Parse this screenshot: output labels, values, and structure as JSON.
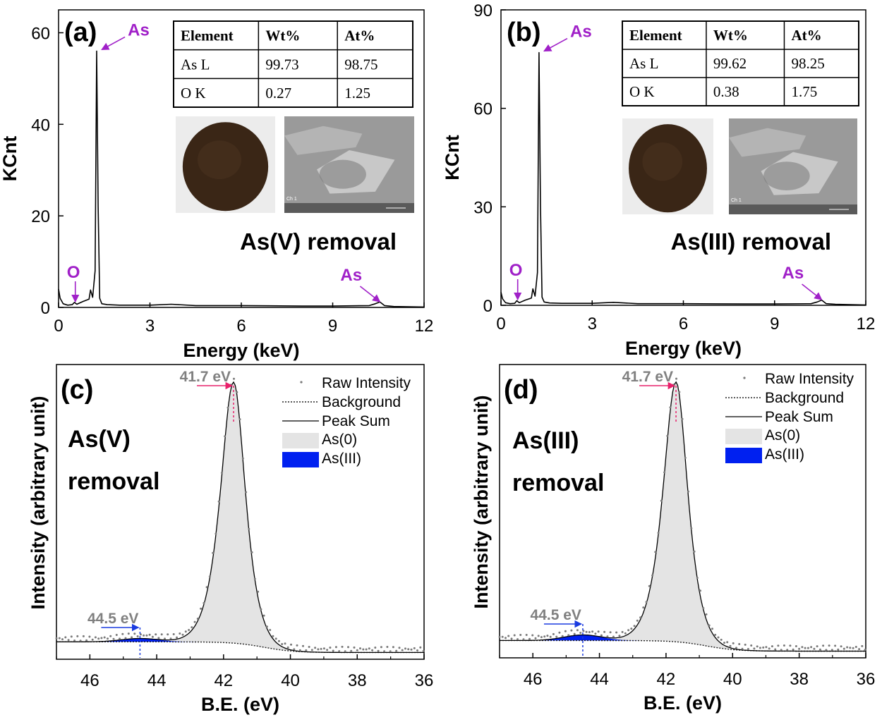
{
  "colors": {
    "annotation": "#a020c8",
    "axis": "#000000",
    "raw_points": "#7a7a7a",
    "fill_as0": "#e4e4e4",
    "fill_as3": "#0020f0",
    "marker_red": "#e8206a",
    "marker_blue": "#1a3be0",
    "label_gray": "#808080"
  },
  "chart_data": [
    {
      "panel": "(a)",
      "type": "line",
      "xlabel": "Energy (keV)",
      "ylabel": "KCnt",
      "xlim": [
        0,
        12
      ],
      "ylim": [
        0,
        65
      ],
      "xticks": [
        0,
        3,
        6,
        9,
        12
      ],
      "yticks": [
        0,
        20,
        40,
        60
      ],
      "x": [
        0,
        0.05,
        0.15,
        0.3,
        0.45,
        0.52,
        0.6,
        0.8,
        1.0,
        1.05,
        1.12,
        1.2,
        1.25,
        1.3,
        1.35,
        1.42,
        1.6,
        2.0,
        3.0,
        3.7,
        4.5,
        6.0,
        8.0,
        9.0,
        10.2,
        10.4,
        10.55,
        10.7,
        11.0,
        12.0
      ],
      "y": [
        4.0,
        2.0,
        0.8,
        0.5,
        0.6,
        1.1,
        0.7,
        1.3,
        1.8,
        3.8,
        2.2,
        8.0,
        56.0,
        22.0,
        2.0,
        0.8,
        0.6,
        0.5,
        0.5,
        0.7,
        0.4,
        0.4,
        0.3,
        0.3,
        0.4,
        0.8,
        1.2,
        0.4,
        0.2,
        0.1
      ],
      "annotations": [
        {
          "text": "As",
          "x": 1.3,
          "y": 56
        },
        {
          "text": "O",
          "x": 0.55,
          "y": 1.1
        },
        {
          "text": "As",
          "x": 10.55,
          "y": 1.2
        }
      ],
      "removal_label": "As(V) removal",
      "table": {
        "headers": [
          "Element",
          "Wt%",
          "At%"
        ],
        "rows": [
          [
            "As L",
            "99.73",
            "98.75"
          ],
          [
            "O K",
            "0.27",
            "1.25"
          ]
        ]
      },
      "sem_label": "Ch 1"
    },
    {
      "panel": "(b)",
      "type": "line",
      "xlabel": "Energy (keV)",
      "ylabel": "KCnt",
      "xlim": [
        0,
        12
      ],
      "ylim": [
        0,
        90
      ],
      "xticks": [
        0,
        3,
        6,
        9,
        12
      ],
      "yticks": [
        0,
        30,
        60,
        90
      ],
      "x": [
        0,
        0.05,
        0.15,
        0.3,
        0.45,
        0.52,
        0.6,
        0.8,
        1.0,
        1.05,
        1.12,
        1.2,
        1.25,
        1.3,
        1.35,
        1.42,
        1.6,
        2.0,
        3.0,
        3.7,
        4.5,
        6.0,
        8.0,
        9.0,
        10.2,
        10.4,
        10.55,
        10.7,
        11.0,
        12.0
      ],
      "y": [
        4.0,
        2.0,
        0.8,
        0.5,
        0.6,
        1.4,
        0.8,
        1.6,
        2.2,
        5.0,
        2.8,
        10.0,
        77.0,
        30.0,
        2.5,
        1.0,
        0.7,
        0.6,
        0.6,
        0.9,
        0.5,
        0.5,
        0.4,
        0.4,
        0.5,
        1.0,
        1.6,
        0.5,
        0.3,
        0.1
      ],
      "annotations": [
        {
          "text": "As",
          "x": 1.3,
          "y": 77
        },
        {
          "text": "O",
          "x": 0.55,
          "y": 1.4
        },
        {
          "text": "As",
          "x": 10.55,
          "y": 1.6
        }
      ],
      "removal_label": "As(III) removal",
      "table": {
        "headers": [
          "Element",
          "Wt%",
          "At%"
        ],
        "rows": [
          [
            "As L",
            "99.62",
            "98.25"
          ],
          [
            "O K",
            "0.38",
            "1.75"
          ]
        ]
      },
      "sem_label": "Ch 1"
    },
    {
      "panel": "(c)",
      "type": "area",
      "xlabel": "B.E. (eV)",
      "ylabel": "Intensity (arbitrary unit)",
      "xlim": [
        47,
        36
      ],
      "ylim": [
        0,
        1.05
      ],
      "xticks": [
        46,
        44,
        42,
        40,
        38,
        36
      ],
      "background_level": [
        0.062,
        0.024
      ],
      "as0_peak": {
        "center": 41.7,
        "height": 0.93
      },
      "as3_peak": {
        "center": 44.5,
        "height": 0.012
      },
      "peak_labels": [
        {
          "text": "41.7 eV",
          "x": 41.7
        },
        {
          "text": "44.5 eV",
          "x": 44.5
        }
      ],
      "legend": [
        "Raw Intensity",
        "Background",
        "Peak Sum",
        "As(0)",
        "As(III)"
      ],
      "removal_label": [
        "As(V)",
        "removal"
      ]
    },
    {
      "panel": "(d)",
      "type": "area",
      "xlabel": "B.E. (eV)",
      "ylabel": "Intensity (arbitrary unit)",
      "xlim": [
        47,
        36
      ],
      "ylim": [
        0,
        1.05
      ],
      "xticks": [
        46,
        44,
        42,
        40,
        38,
        36
      ],
      "background_level": [
        0.062,
        0.024
      ],
      "as0_peak": {
        "center": 41.7,
        "height": 0.93
      },
      "as3_peak": {
        "center": 44.5,
        "height": 0.02
      },
      "peak_labels": [
        {
          "text": "41.7 eV",
          "x": 41.7
        },
        {
          "text": "44.5 eV",
          "x": 44.5
        }
      ],
      "legend": [
        "Raw Intensity",
        "Background",
        "Peak Sum",
        "As(0)",
        "As(III)"
      ],
      "removal_label": [
        "As(III)",
        "removal"
      ]
    }
  ]
}
